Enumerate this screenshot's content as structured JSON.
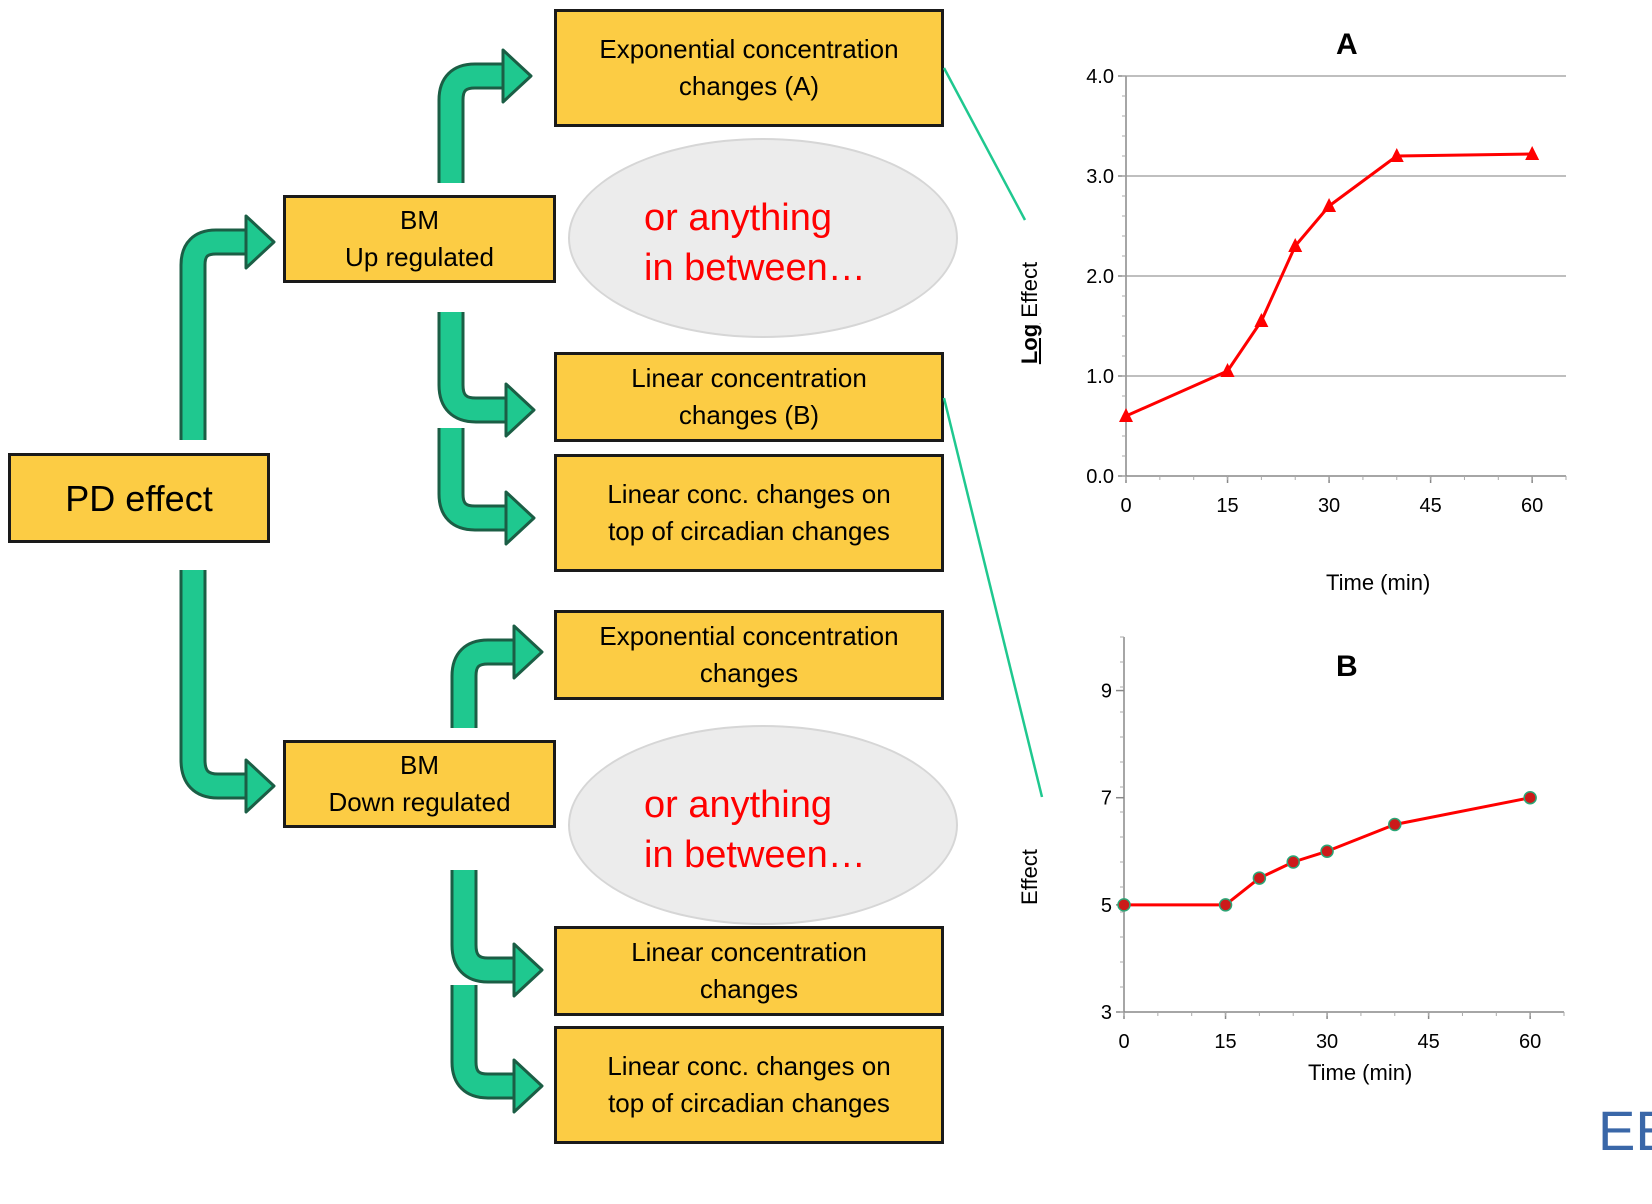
{
  "diagram": {
    "root": "PD effect",
    "up": {
      "label": "BM\nUp regulated",
      "options": [
        "Exponential concentration\nchanges (A)",
        "Linear concentration\nchanges (B)",
        "Linear conc. changes on\ntop of circadian changes"
      ],
      "between": "or anything\nin between…"
    },
    "down": {
      "label": "BM\nDown regulated",
      "options": [
        "Exponential concentration\nchanges",
        "Linear concentration\nchanges",
        "Linear conc. changes on\ntop of circadian changes"
      ],
      "between": "or anything\nin between…"
    },
    "colors": {
      "box": "#fccc44",
      "arrow": "#1fc88f",
      "curve": "#ff0000"
    }
  },
  "logo_fragment": "EE",
  "chart_data": [
    {
      "type": "line",
      "title": "A",
      "xlabel": "Time (min)",
      "ylabel_bold": "Log",
      "ylabel": "Effect",
      "x": [
        0,
        15,
        20,
        25,
        30,
        40,
        60
      ],
      "y": [
        0.6,
        1.05,
        1.55,
        2.3,
        2.7,
        3.2,
        3.22
      ],
      "xticks": [
        "0",
        "15",
        "30",
        "45",
        "60"
      ],
      "yticks": [
        "0.0",
        "1.0",
        "2.0",
        "3.0",
        "4.0"
      ],
      "xlim": [
        0,
        65
      ],
      "ylim": [
        0,
        4
      ],
      "grid": "horizontal",
      "marker": "triangle",
      "color": "#ff0000"
    },
    {
      "type": "line",
      "title": "B",
      "xlabel": "Time (min)",
      "ylabel_bold": "",
      "ylabel": "Effect",
      "x": [
        0,
        15,
        20,
        25,
        30,
        40,
        60
      ],
      "y": [
        5,
        5,
        5.5,
        5.8,
        6,
        6.5,
        7
      ],
      "xticks": [
        "0",
        "15",
        "30",
        "45",
        "60"
      ],
      "yticks": [
        "3",
        "5",
        "7",
        "9"
      ],
      "xlim": [
        0,
        65
      ],
      "ylim": [
        3,
        10
      ],
      "grid": "none",
      "marker": "circle",
      "color": "#ff0000"
    }
  ]
}
